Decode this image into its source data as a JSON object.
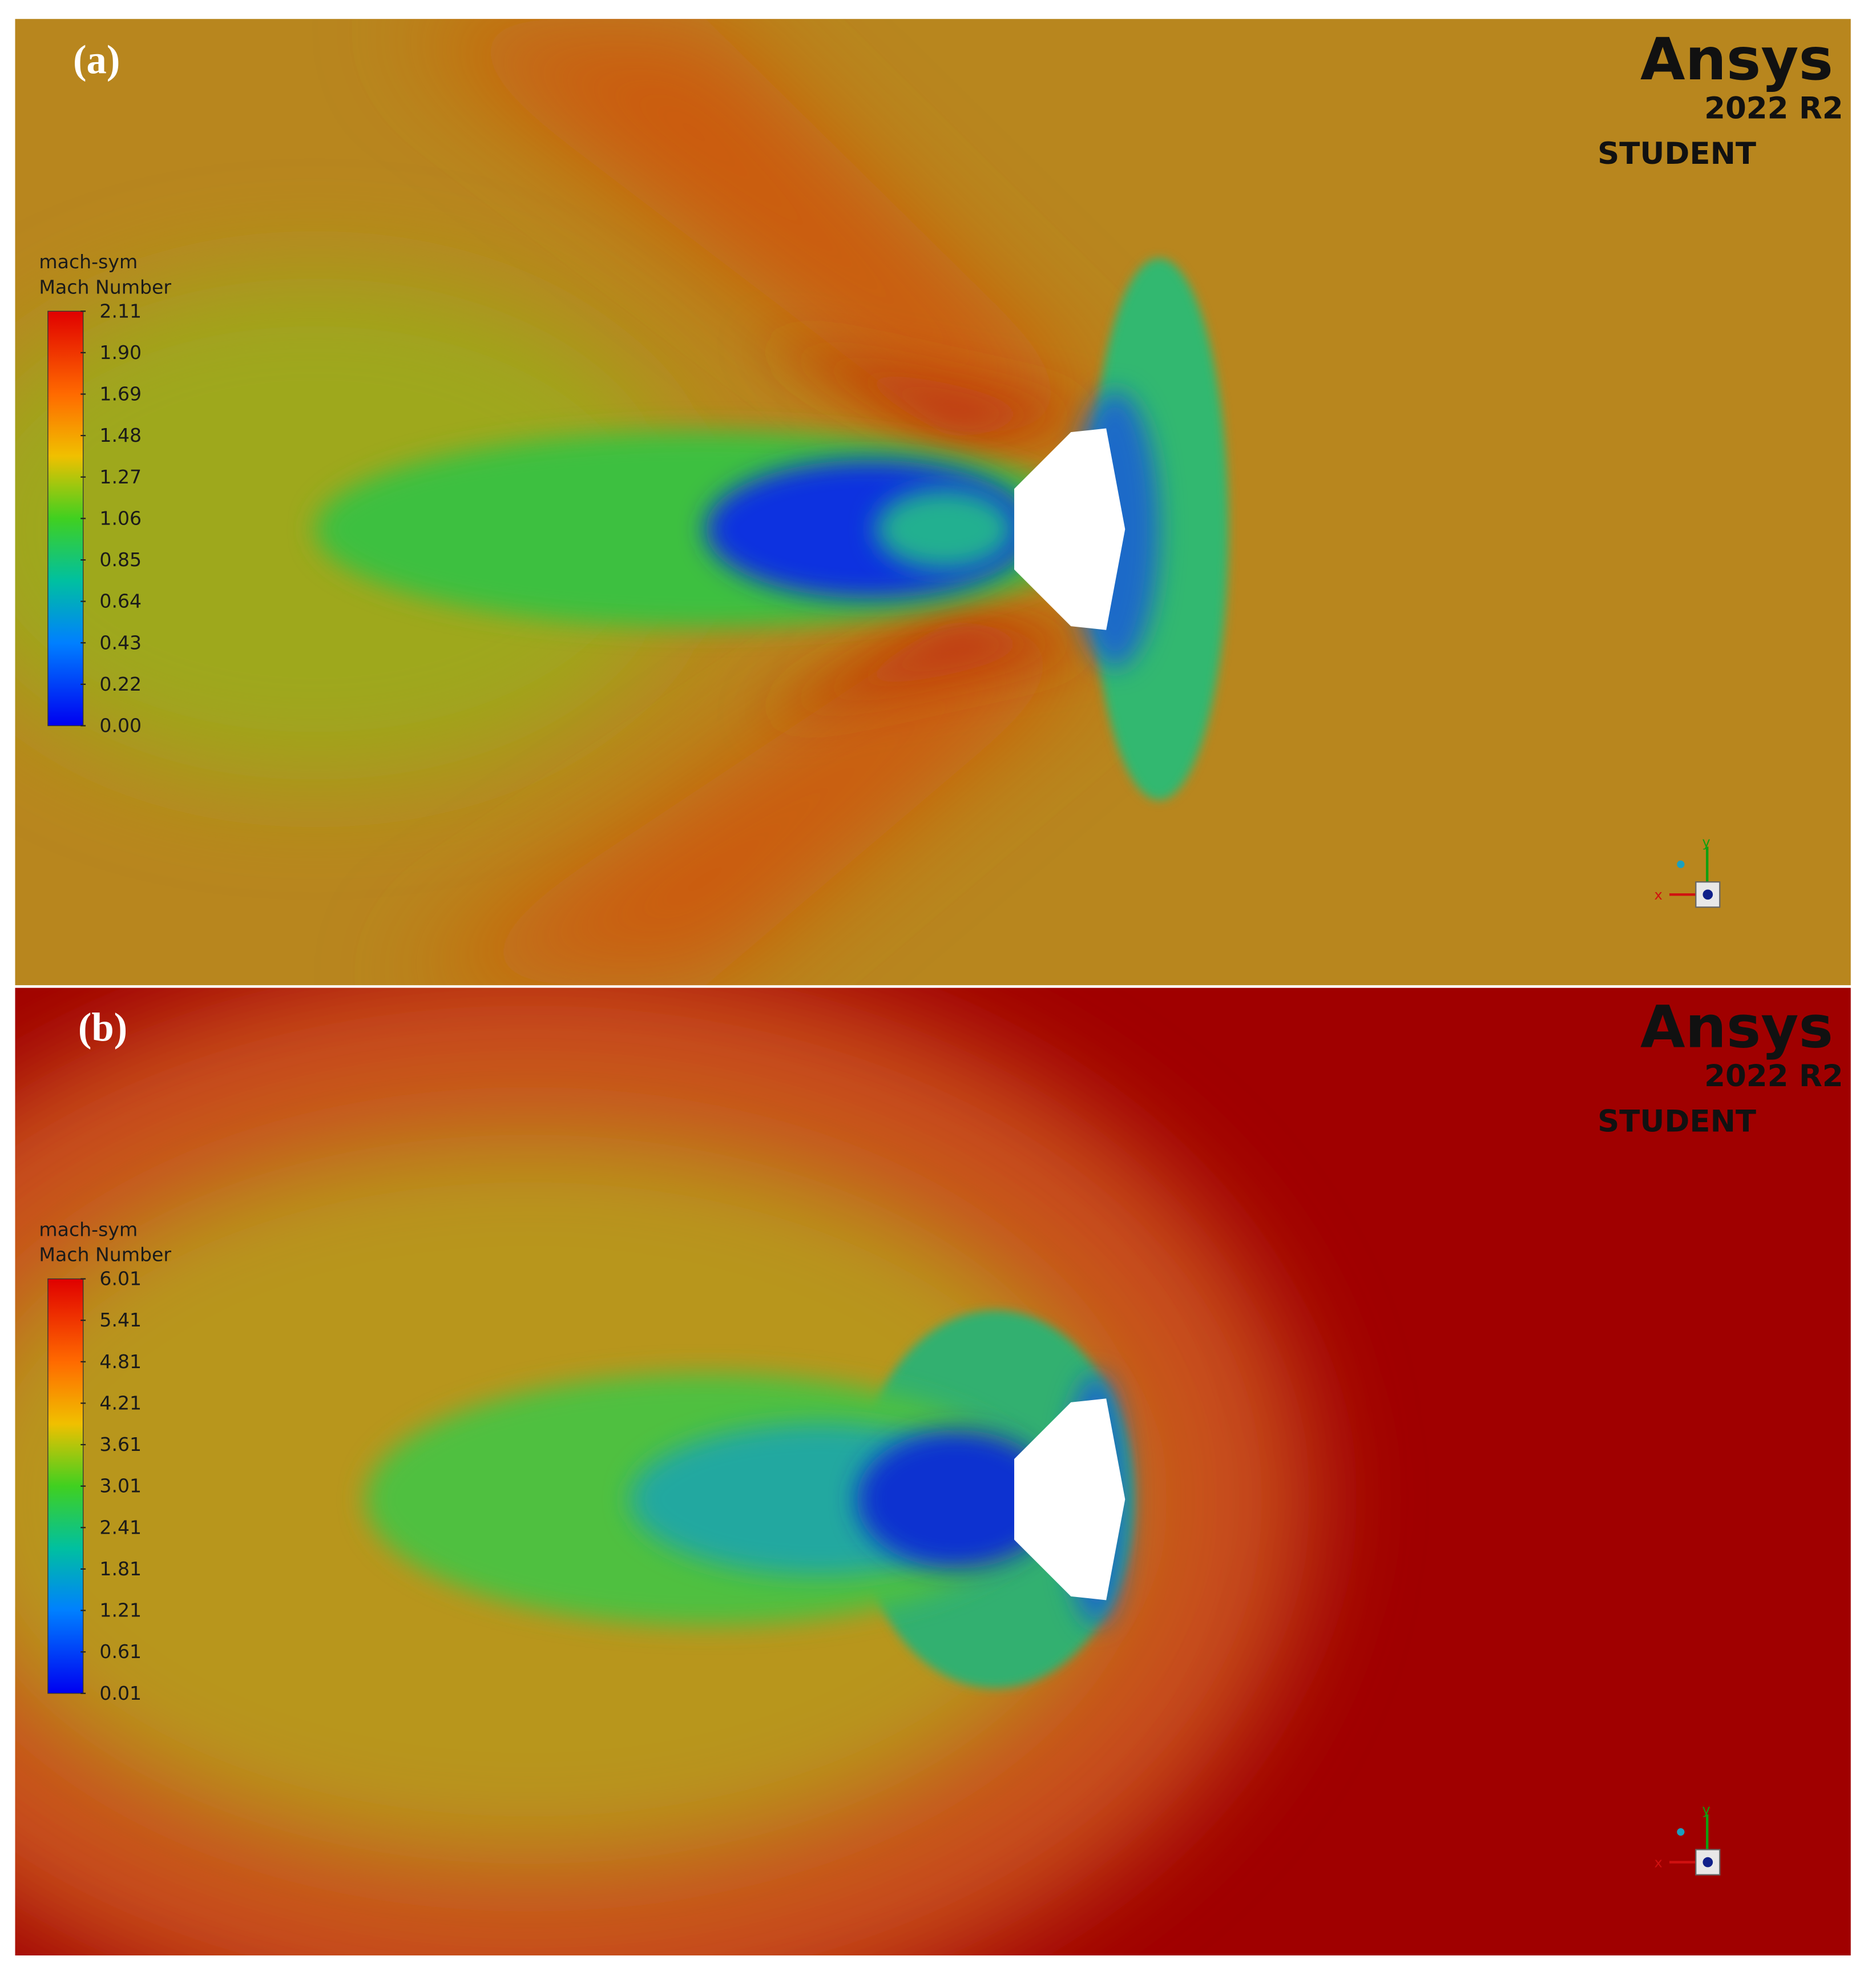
{
  "panels": [
    {
      "label": "(a)",
      "logo": {
        "name": "Ansys",
        "version": "2022 R2",
        "edition": "STUDENT"
      },
      "legend": {
        "title": [
          "mach-sym",
          "Mach Number"
        ],
        "ticks": [
          "2.11",
          "1.90",
          "1.69",
          "1.48",
          "1.27",
          "1.06",
          "0.85",
          "0.64",
          "0.43",
          "0.22",
          "0.00"
        ]
      },
      "axes": {
        "x": "x",
        "y": "y"
      }
    },
    {
      "label": "(b)",
      "logo": {
        "name": "Ansys",
        "version": "2022 R2",
        "edition": "STUDENT"
      },
      "legend": {
        "title": [
          "mach-sym",
          "Mach Number"
        ],
        "ticks": [
          "6.01",
          "5.41",
          "4.81",
          "4.21",
          "3.61",
          "3.01",
          "2.41",
          "1.81",
          "1.21",
          "0.61",
          "0.01"
        ]
      },
      "axes": {
        "x": "x",
        "y": "y"
      }
    }
  ]
}
